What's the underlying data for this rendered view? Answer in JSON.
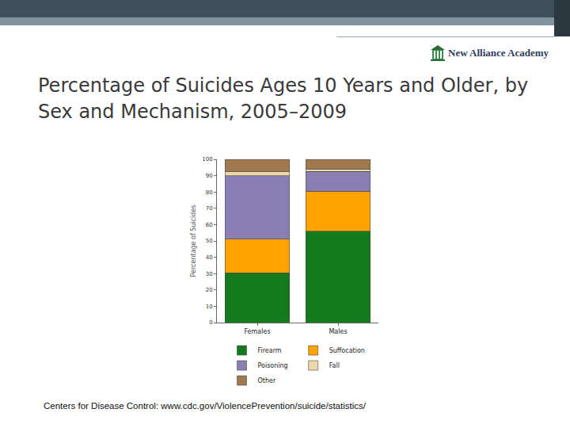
{
  "chart_data": {
    "type": "bar",
    "title": "Percentage of Suicides Ages 10 Years and Older, by Sex and Mechanism, 2005–2009",
    "y_label": "Percentage of Suicides",
    "categories": [
      "Females",
      "Males"
    ],
    "series": [
      {
        "name": "Firearm",
        "color": "#15791d",
        "values": [
          30.5,
          56
        ]
      },
      {
        "name": "Suffocation",
        "color": "#ffa300",
        "values": [
          20.5,
          24.5
        ]
      },
      {
        "name": "Poisoning",
        "color": "#8a7fb3",
        "values": [
          39,
          12
        ]
      },
      {
        "name": "Fall",
        "color": "#ecd8a9",
        "values": [
          2.5,
          1.5
        ]
      },
      {
        "name": "Other",
        "color": "#a07a4e",
        "values": [
          7.5,
          6
        ]
      }
    ],
    "stacked": true,
    "ylim": [
      0,
      100
    ],
    "yticks": [
      0,
      10,
      20,
      30,
      40,
      50,
      60,
      70,
      80,
      90,
      100
    ],
    "grid": false,
    "legend": "bottom"
  },
  "slide": {
    "logo": "New Alliance Academy",
    "source": "Centers for Disease Control: www.cdc.gov/ViolencePrevention/suicide/statistics/"
  }
}
